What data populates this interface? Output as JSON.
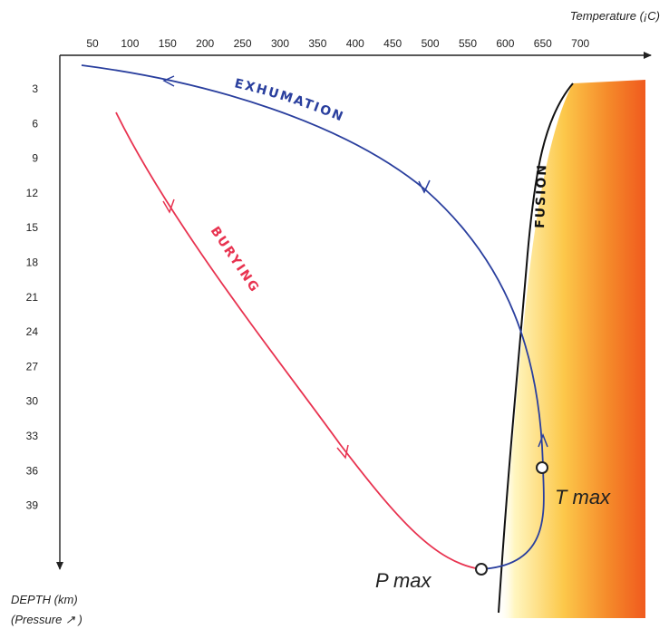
{
  "x_axis": {
    "title": "Temperature (¡C)",
    "ticks": [
      "50",
      "100",
      "150",
      "200",
      "250",
      "300",
      "350",
      "400",
      "450",
      "500",
      "550",
      "600",
      "650",
      "700"
    ]
  },
  "y_axis": {
    "title_line1": "DEPTH (km)",
    "title_line2": "(Pressure ↗ )",
    "ticks": [
      "3",
      "6",
      "9",
      "12",
      "15",
      "18",
      "21",
      "24",
      "27",
      "30",
      "33",
      "36",
      "39"
    ]
  },
  "labels": {
    "exhumation": "EXHUMATION",
    "burying": "BURYING",
    "fusion": "FUSION",
    "tmax": "T max",
    "pmax": "P max"
  },
  "colors": {
    "exhumation": "#2a3f9e",
    "burying": "#e83350",
    "fusion": "#111111",
    "melt_zone_start": "#fff6c0",
    "melt_zone_end": "#f05a1e"
  }
}
